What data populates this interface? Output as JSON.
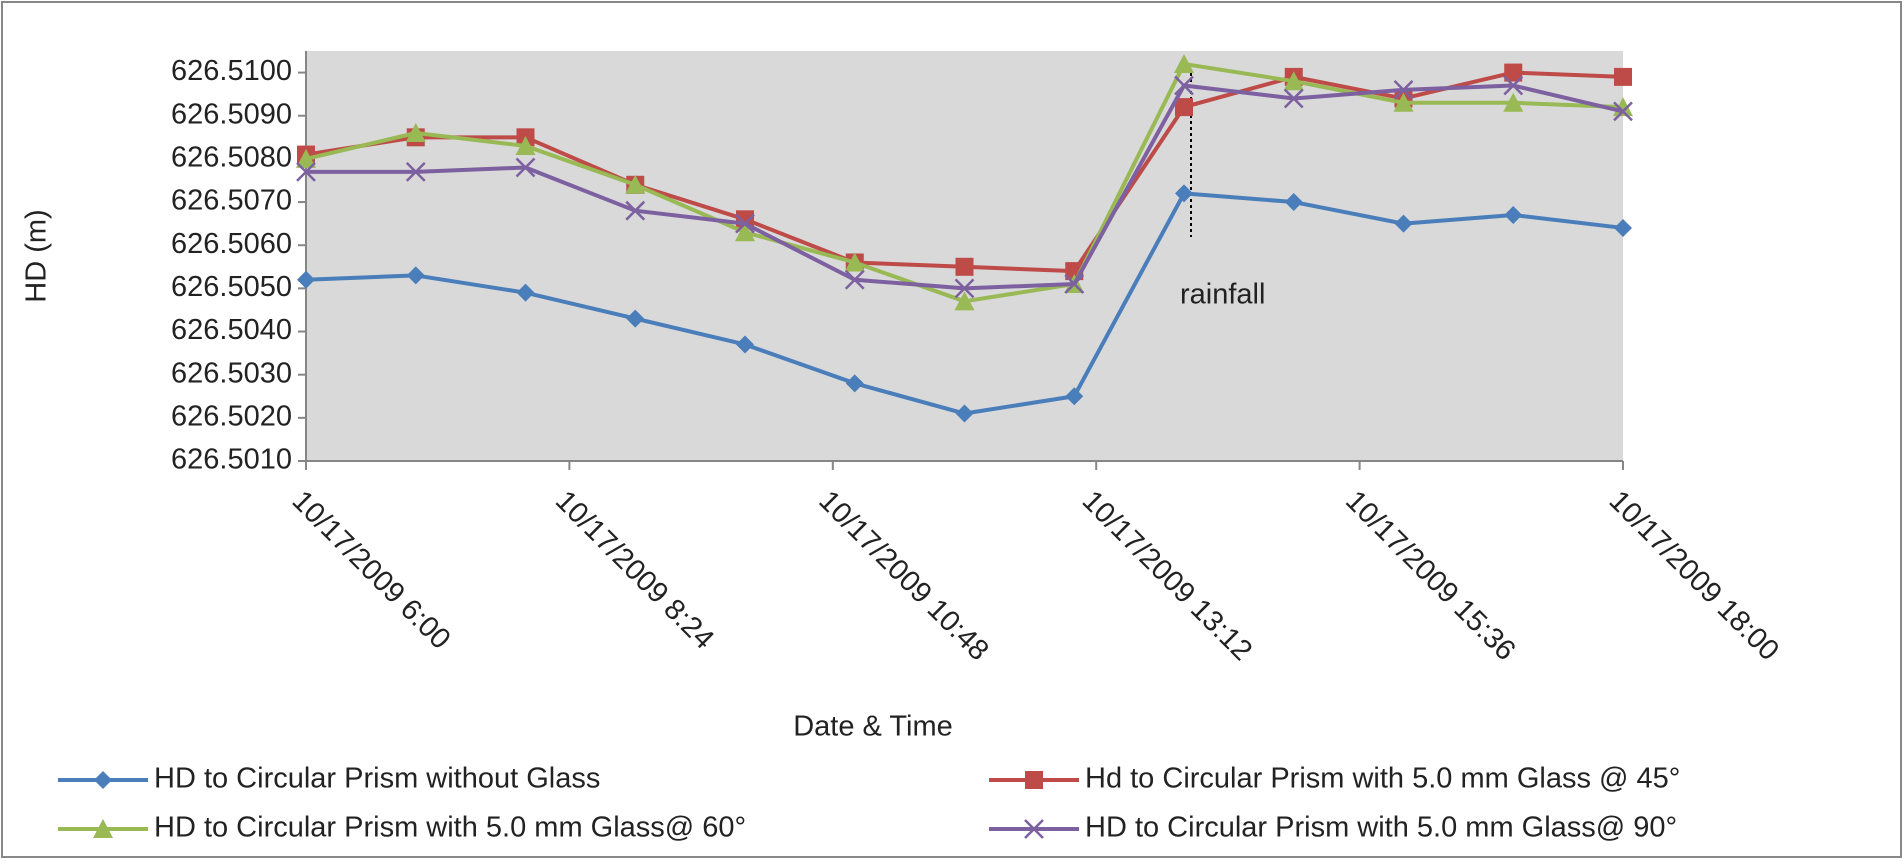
{
  "chart_data": {
    "type": "line",
    "y_label": "HD (m)",
    "x_label": "Date & Time",
    "annotation": "rainfall",
    "x": [
      6,
      7,
      8,
      9,
      10,
      11,
      12,
      13,
      14,
      15,
      16,
      17,
      18
    ],
    "xlim": [
      6,
      18
    ],
    "xticks": [
      {
        "value": 6,
        "label": "10/17/2009 6:00"
      },
      {
        "value": 8.4,
        "label": "10/17/2009 8:24"
      },
      {
        "value": 10.8,
        "label": "10/17/2009 10:48"
      },
      {
        "value": 13.2,
        "label": "10/17/2009 13:12"
      },
      {
        "value": 15.6,
        "label": "10/17/2009 15:36"
      },
      {
        "value": 18,
        "label": "10/17/2009 18:00"
      }
    ],
    "ylim": [
      626.501,
      626.5105
    ],
    "yticks": [
      {
        "value": 626.501,
        "label": "626.5010"
      },
      {
        "value": 626.502,
        "label": "626.5020"
      },
      {
        "value": 626.503,
        "label": "626.5030"
      },
      {
        "value": 626.504,
        "label": "626.5040"
      },
      {
        "value": 626.505,
        "label": "626.5050"
      },
      {
        "value": 626.506,
        "label": "626.5060"
      },
      {
        "value": 626.507,
        "label": "626.5070"
      },
      {
        "value": 626.508,
        "label": "626.5080"
      },
      {
        "value": 626.509,
        "label": "626.5090"
      },
      {
        "value": 626.51,
        "label": "626.5100"
      }
    ],
    "series": [
      {
        "name": "HD to Circular Prism without Glass",
        "color": "#4a7ebb",
        "marker": "diamond",
        "values": [
          626.5052,
          626.5053,
          626.5049,
          626.5043,
          626.5037,
          626.5028,
          626.5021,
          626.5025,
          626.5072,
          626.507,
          626.5065,
          626.5067,
          626.5064
        ]
      },
      {
        "name": "Hd to Circular Prism  with 5.0 mm Glass @ 45°",
        "color": "#be4b48",
        "marker": "square",
        "values": [
          626.5081,
          626.5085,
          626.5085,
          626.5074,
          626.5066,
          626.5056,
          626.5055,
          626.5054,
          626.5092,
          626.5099,
          626.5094,
          626.51,
          626.5099
        ]
      },
      {
        "name": "HD to Circular Prism  with 5.0 mm Glass@ 60°",
        "color": "#98b954",
        "marker": "triangle",
        "values": [
          626.508,
          626.5086,
          626.5083,
          626.5074,
          626.5063,
          626.5056,
          626.5047,
          626.5051,
          626.5102,
          626.5098,
          626.5093,
          626.5093,
          626.5092
        ]
      },
      {
        "name": "HD to Circular Prism with 5.0 mm Glass@ 90°",
        "color": "#7d60a0",
        "marker": "x",
        "values": [
          626.5077,
          626.5077,
          626.5078,
          626.5068,
          626.5065,
          626.5052,
          626.505,
          626.5051,
          626.5097,
          626.5094,
          626.5096,
          626.5097,
          626.5091
        ]
      }
    ]
  }
}
